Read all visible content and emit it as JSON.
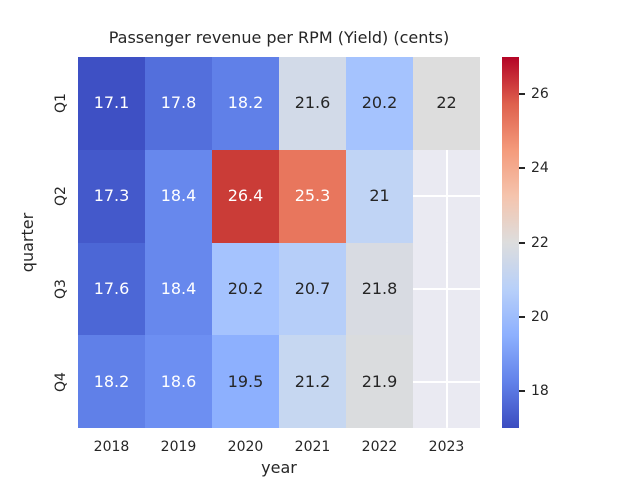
{
  "title": "Passenger revenue per RPM (Yield) (cents)",
  "chart_data": {
    "type": "heatmap",
    "title": "Passenger revenue per RPM (Yield) (cents)",
    "xlabel": "year",
    "ylabel": "quarter",
    "x_categories": [
      "2018",
      "2019",
      "2020",
      "2021",
      "2022",
      "2023"
    ],
    "y_categories": [
      "Q1",
      "Q2",
      "Q3",
      "Q4"
    ],
    "values": [
      [
        17.1,
        17.8,
        18.2,
        21.6,
        20.2,
        22
      ],
      [
        17.3,
        18.4,
        26.4,
        25.3,
        21,
        null
      ],
      [
        17.6,
        18.4,
        20.2,
        20.7,
        21.8,
        null
      ],
      [
        18.2,
        18.6,
        19.5,
        21.2,
        21.9,
        null
      ]
    ],
    "cell_labels": [
      [
        "17.1",
        "17.8",
        "18.2",
        "21.6",
        "20.2",
        "22"
      ],
      [
        "17.3",
        "18.4",
        "26.4",
        "25.3",
        "21",
        ""
      ],
      [
        "17.6",
        "18.4",
        "20.2",
        "20.7",
        "21.8",
        ""
      ],
      [
        "18.2",
        "18.6",
        "19.5",
        "21.2",
        "21.9",
        ""
      ]
    ],
    "cell_colors": [
      [
        "#3E50C4",
        "#536FDC",
        "#6080E8",
        "#D2DAE8",
        "#A5C3FE",
        "#DDDDDD"
      ],
      [
        "#4459CB",
        "#6788ED",
        "#CA3C37",
        "#E8765D",
        "#C0D4F5",
        null
      ],
      [
        "#4C67D6",
        "#6788ED",
        "#A5C3FE",
        "#B6CEF9",
        "#D8DBE2",
        null
      ],
      [
        "#6080E8",
        "#6D8FF2",
        "#8DB0FE",
        "#C6D7F1",
        "#DADCDE",
        null
      ]
    ],
    "cell_text_colors": [
      [
        "#FFFFFF",
        "#FFFFFF",
        "#FFFFFF",
        "#262626",
        "#262626",
        "#262626"
      ],
      [
        "#FFFFFF",
        "#FFFFFF",
        "#FFFFFF",
        "#FFFFFF",
        "#262626",
        null
      ],
      [
        "#FFFFFF",
        "#FFFFFF",
        "#262626",
        "#262626",
        "#262626",
        null
      ],
      [
        "#FFFFFF",
        "#FFFFFF",
        "#262626",
        "#262626",
        "#262626",
        null
      ]
    ],
    "colormap": "coolwarm",
    "vmin": 17,
    "vmax": 27,
    "empty_cell_color": "#EAEAF2",
    "gridline_color": "#FFFFFF",
    "text_color": "#262626",
    "legend_position": "right",
    "colorbar": {
      "ticks": [
        18,
        20,
        22,
        24,
        26
      ],
      "gradient_stops": [
        {
          "pos": 0.0,
          "color": "#3B4CC0"
        },
        {
          "pos": 0.125,
          "color": "#6282EA"
        },
        {
          "pos": 0.25,
          "color": "#8DB0FE"
        },
        {
          "pos": 0.375,
          "color": "#B8D0F9"
        },
        {
          "pos": 0.5,
          "color": "#DDDDDD"
        },
        {
          "pos": 0.625,
          "color": "#F5C4AD"
        },
        {
          "pos": 0.75,
          "color": "#F49A7B"
        },
        {
          "pos": 0.875,
          "color": "#DE604D"
        },
        {
          "pos": 1.0,
          "color": "#B40426"
        }
      ]
    }
  }
}
